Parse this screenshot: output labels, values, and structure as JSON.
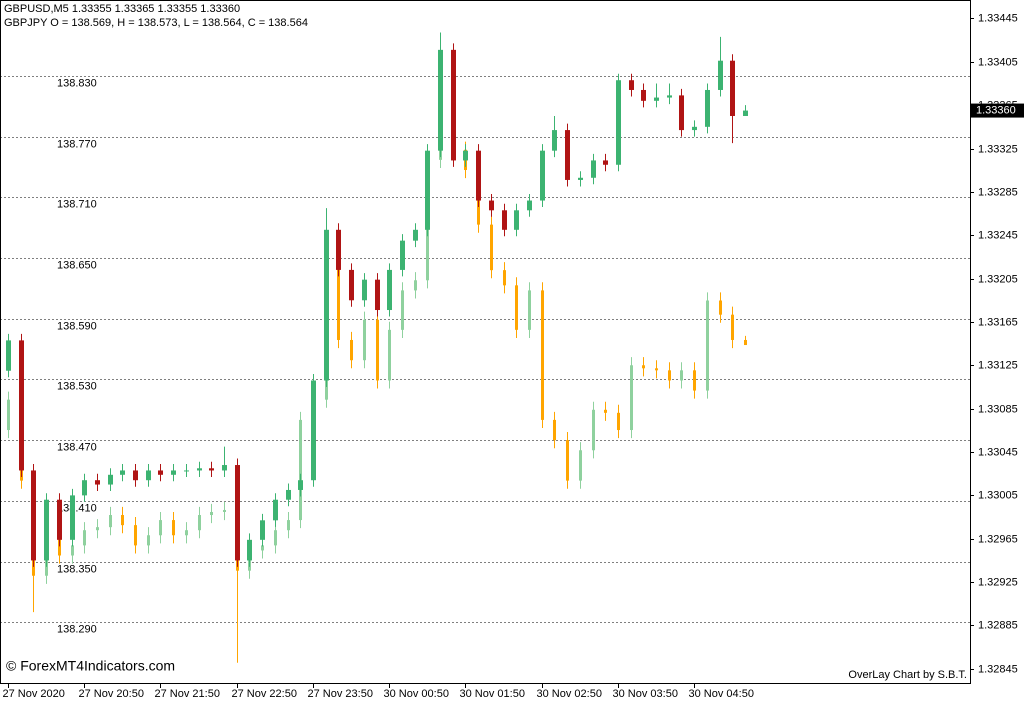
{
  "chart_data": {
    "type": "candlestick",
    "header": [
      "GBPUSD,M5  1.33355 1.33365 1.33355 1.33360",
      "GBPJPY O = 138.569, H = 138.573, L = 138.564, C = 138.564"
    ],
    "watermark": "© ForexMT4Indicators.com",
    "credit": "OverLay Chart by S.B.T.",
    "categories": [
      "27 Nov 2020",
      null,
      null,
      null,
      null,
      null,
      "27 Nov 20:50",
      null,
      null,
      null,
      null,
      null,
      "27 Nov 21:50",
      null,
      null,
      null,
      null,
      null,
      "27 Nov 22:50",
      null,
      null,
      null,
      null,
      null,
      "27 Nov 23:50",
      null,
      null,
      null,
      null,
      null,
      "30 Nov 00:50",
      null,
      null,
      null,
      null,
      null,
      "30 Nov 01:50",
      null,
      null,
      null,
      null,
      null,
      "30 Nov 02:50",
      null,
      null,
      null,
      null,
      null,
      "30 Nov 03:50",
      null,
      null,
      null,
      null,
      null,
      "30 Nov 04:50",
      null,
      null,
      null,
      null
    ],
    "ylim": [
      1.32831,
      1.33462
    ],
    "yticks": [
      1.33445,
      1.33405,
      1.33365,
      1.33325,
      1.33285,
      1.33245,
      1.33205,
      1.33165,
      1.33125,
      1.33085,
      1.33045,
      1.33005,
      1.32965,
      1.32925,
      1.32885,
      1.32845
    ],
    "y2lim": [
      138.229,
      138.905
    ],
    "y2ticks": [
      {
        "value": 138.83,
        "label": "138.830"
      },
      {
        "value": 138.77,
        "label": "138.770"
      },
      {
        "value": 138.71,
        "label": "138.710"
      },
      {
        "value": 138.65,
        "label": "138.650"
      },
      {
        "value": 138.59,
        "label": "138.590"
      },
      {
        "value": 138.53,
        "label": "138.530"
      },
      {
        "value": 138.47,
        "label": "138.470"
      },
      {
        "value": 138.41,
        "label": "138.410"
      },
      {
        "value": 138.35,
        "label": "138.350"
      },
      {
        "value": 138.29,
        "label": "138.290"
      }
    ],
    "grid": true,
    "series": [
      {
        "up_color": "#3cb371",
        "down_color": "#b01414",
        "last_label": "1.33360",
        "ohlc": [
          [
            1.3312,
            1.33154,
            1.33114,
            1.33148
          ],
          [
            1.33148,
            1.33154,
            1.33022,
            1.33028
          ],
          [
            1.33028,
            1.33034,
            1.32939,
            1.32945
          ],
          [
            1.32945,
            1.33007,
            1.32939,
            1.33001
          ],
          [
            1.33001,
            1.33007,
            1.32958,
            1.32964
          ],
          [
            1.32964,
            1.33011,
            1.32958,
            1.33005
          ],
          [
            1.33005,
            1.33025,
            1.32999,
            1.33019
          ],
          [
            1.33019,
            1.33025,
            1.33009,
            1.33015
          ],
          [
            1.33015,
            1.3303,
            1.33009,
            1.33024
          ],
          [
            1.33024,
            1.33034,
            1.33018,
            1.33028
          ],
          [
            1.33028,
            1.33034,
            1.33013,
            1.33019
          ],
          [
            1.33019,
            1.33034,
            1.33013,
            1.33028
          ],
          [
            1.33028,
            1.33034,
            1.33018,
            1.33024
          ],
          [
            1.33024,
            1.33034,
            1.33018,
            1.33028
          ],
          [
            1.33028,
            1.33034,
            1.33022,
            1.33028
          ],
          [
            1.33028,
            1.33036,
            1.33022,
            1.3303
          ],
          [
            1.3303,
            1.33036,
            1.33022,
            1.33028
          ],
          [
            1.33028,
            1.3305,
            1.33022,
            1.33033
          ],
          [
            1.33033,
            1.33039,
            1.32939,
            1.32945
          ],
          [
            1.32945,
            1.3297,
            1.32939,
            1.32964
          ],
          [
            1.32964,
            1.32988,
            1.32958,
            1.32982
          ],
          [
            1.32982,
            1.33007,
            1.32976,
            1.33001
          ],
          [
            1.33001,
            1.33016,
            1.32995,
            1.3301
          ],
          [
            1.3301,
            1.33025,
            1.33004,
            1.33019
          ],
          [
            1.33019,
            1.33117,
            1.33013,
            1.33111
          ],
          [
            1.33111,
            1.3327,
            1.33105,
            1.3325
          ],
          [
            1.3325,
            1.33256,
            1.33207,
            1.33213
          ],
          [
            1.33213,
            1.33219,
            1.33179,
            1.33185
          ],
          [
            1.33185,
            1.3321,
            1.33179,
            1.33204
          ],
          [
            1.33204,
            1.3321,
            1.3317,
            1.33176
          ],
          [
            1.33176,
            1.33219,
            1.3317,
            1.33213
          ],
          [
            1.33213,
            1.33246,
            1.33207,
            1.3324
          ],
          [
            1.3324,
            1.33256,
            1.33234,
            1.3325
          ],
          [
            1.3325,
            1.33329,
            1.33244,
            1.33323
          ],
          [
            1.33323,
            1.33432,
            1.33317,
            1.33416
          ],
          [
            1.33416,
            1.33422,
            1.33308,
            1.33314
          ],
          [
            1.33314,
            1.33329,
            1.33308,
            1.33323
          ],
          [
            1.33323,
            1.33329,
            1.33271,
            1.33277
          ],
          [
            1.33277,
            1.33283,
            1.33262,
            1.33268
          ],
          [
            1.33268,
            1.33274,
            1.33244,
            1.3325
          ],
          [
            1.3325,
            1.33274,
            1.33244,
            1.33268
          ],
          [
            1.33268,
            1.33283,
            1.33262,
            1.33277
          ],
          [
            1.33277,
            1.33329,
            1.33271,
            1.33323
          ],
          [
            1.33323,
            1.33355,
            1.33317,
            1.33342
          ],
          [
            1.33342,
            1.33348,
            1.3329,
            1.33296
          ],
          [
            1.33296,
            1.33304,
            1.3329,
            1.33298
          ],
          [
            1.33298,
            1.3332,
            1.33292,
            1.33314
          ],
          [
            1.33314,
            1.3332,
            1.33304,
            1.3331
          ],
          [
            1.3331,
            1.33394,
            1.33304,
            1.33388
          ],
          [
            1.33388,
            1.33394,
            1.33373,
            1.33379
          ],
          [
            1.33379,
            1.33385,
            1.33363,
            1.33369
          ],
          [
            1.33369,
            1.33385,
            1.33363,
            1.33372
          ],
          [
            1.33372,
            1.33385,
            1.33366,
            1.33374
          ],
          [
            1.33374,
            1.3338,
            1.33336,
            1.33342
          ],
          [
            1.33342,
            1.33351,
            1.33336,
            1.33345
          ],
          [
            1.33345,
            1.33385,
            1.33339,
            1.33379
          ],
          [
            1.33379,
            1.33428,
            1.33373,
            1.33406
          ],
          [
            1.33406,
            1.33412,
            1.3333,
            1.33355
          ],
          [
            1.33355,
            1.33365,
            1.33355,
            1.3336
          ]
        ]
      },
      {
        "axis": "y2",
        "up_color": "#8fd19e",
        "down_color": "#ffa500",
        "ohlc": [
          [
            138.48,
            138.518,
            138.472,
            138.51
          ],
          [
            138.51,
            138.518,
            138.422,
            138.43
          ],
          [
            138.43,
            138.438,
            138.3,
            138.336
          ],
          [
            138.336,
            138.399,
            138.328,
            138.391
          ],
          [
            138.391,
            138.399,
            138.348,
            138.356
          ],
          [
            138.356,
            138.374,
            138.348,
            138.366
          ],
          [
            138.366,
            138.389,
            138.358,
            138.381
          ],
          [
            138.381,
            138.392,
            138.373,
            138.384
          ],
          [
            138.384,
            138.404,
            138.376,
            138.396
          ],
          [
            138.396,
            138.404,
            138.378,
            138.386
          ],
          [
            138.386,
            138.394,
            138.358,
            138.366
          ],
          [
            138.366,
            138.384,
            138.358,
            138.376
          ],
          [
            138.376,
            138.399,
            138.368,
            138.391
          ],
          [
            138.391,
            138.399,
            138.368,
            138.376
          ],
          [
            138.376,
            138.389,
            138.368,
            138.381
          ],
          [
            138.381,
            138.404,
            138.373,
            138.396
          ],
          [
            138.396,
            138.407,
            138.388,
            138.399
          ],
          [
            138.399,
            138.409,
            138.391,
            138.401
          ],
          [
            138.401,
            138.409,
            138.25,
            138.341
          ],
          [
            138.341,
            138.369,
            138.333,
            138.361
          ],
          [
            138.361,
            138.374,
            138.353,
            138.366
          ],
          [
            138.366,
            138.389,
            138.358,
            138.381
          ],
          [
            138.381,
            138.399,
            138.373,
            138.391
          ],
          [
            138.391,
            138.498,
            138.383,
            138.49
          ],
          [
            138.49,
            138.518,
            138.482,
            138.51
          ],
          [
            138.51,
            138.656,
            138.502,
            138.648
          ],
          [
            138.648,
            138.656,
            138.561,
            138.569
          ],
          [
            138.569,
            138.577,
            138.541,
            138.549
          ],
          [
            138.549,
            138.597,
            138.541,
            138.589
          ],
          [
            138.589,
            138.597,
            138.521,
            138.529
          ],
          [
            138.529,
            138.587,
            138.521,
            138.579
          ],
          [
            138.579,
            138.626,
            138.571,
            138.618
          ],
          [
            138.618,
            138.636,
            138.61,
            138.628
          ],
          [
            138.628,
            138.755,
            138.62,
            138.747
          ],
          [
            138.747,
            138.814,
            138.739,
            138.806
          ],
          [
            138.806,
            138.814,
            138.749,
            138.757
          ],
          [
            138.757,
            138.765,
            138.729,
            138.737
          ],
          [
            138.737,
            138.745,
            138.675,
            138.683
          ],
          [
            138.683,
            138.691,
            138.63,
            138.638
          ],
          [
            138.638,
            138.646,
            138.615,
            138.623
          ],
          [
            138.623,
            138.631,
            138.571,
            138.579
          ],
          [
            138.579,
            138.626,
            138.571,
            138.618
          ],
          [
            138.618,
            138.626,
            138.482,
            138.49
          ],
          [
            138.49,
            138.498,
            138.462,
            138.47
          ],
          [
            138.47,
            138.478,
            138.422,
            138.43
          ],
          [
            138.43,
            138.468,
            138.422,
            138.46
          ],
          [
            138.46,
            138.508,
            138.452,
            138.5
          ],
          [
            138.5,
            138.508,
            138.489,
            138.497
          ],
          [
            138.497,
            138.505,
            138.472,
            138.48
          ],
          [
            138.48,
            138.552,
            138.472,
            138.544
          ],
          [
            138.544,
            138.552,
            138.533,
            138.541
          ],
          [
            138.541,
            138.549,
            138.531,
            138.539
          ],
          [
            138.539,
            138.547,
            138.521,
            138.529
          ],
          [
            138.529,
            138.547,
            138.521,
            138.539
          ],
          [
            138.539,
            138.547,
            138.511,
            138.519
          ],
          [
            138.519,
            138.616,
            138.511,
            138.608
          ],
          [
            138.608,
            138.616,
            138.586,
            138.594
          ],
          [
            138.594,
            138.602,
            138.561,
            138.569
          ],
          [
            138.569,
            138.573,
            138.564,
            138.564
          ]
        ]
      }
    ]
  }
}
